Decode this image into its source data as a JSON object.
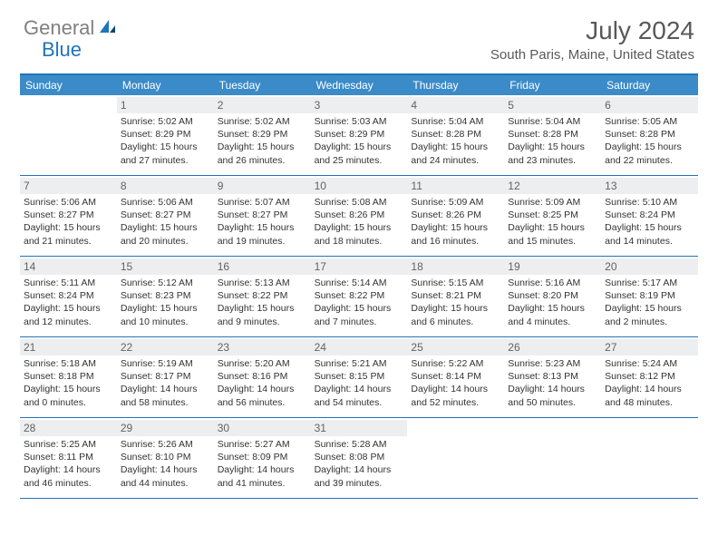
{
  "logo": {
    "part1": "General",
    "part2": "Blue"
  },
  "title": "July 2024",
  "location": "South Paris, Maine, United States",
  "day_names": [
    "Sunday",
    "Monday",
    "Tuesday",
    "Wednesday",
    "Thursday",
    "Friday",
    "Saturday"
  ],
  "colors": {
    "header_bg": "#3b8bc8",
    "border": "#2074bc",
    "daynum_bg": "#eceeef",
    "text_gray": "#595959"
  },
  "weeks": [
    [
      {
        "n": "",
        "lines": []
      },
      {
        "n": "1",
        "lines": [
          "Sunrise: 5:02 AM",
          "Sunset: 8:29 PM",
          "Daylight: 15 hours and 27 minutes."
        ]
      },
      {
        "n": "2",
        "lines": [
          "Sunrise: 5:02 AM",
          "Sunset: 8:29 PM",
          "Daylight: 15 hours and 26 minutes."
        ]
      },
      {
        "n": "3",
        "lines": [
          "Sunrise: 5:03 AM",
          "Sunset: 8:29 PM",
          "Daylight: 15 hours and 25 minutes."
        ]
      },
      {
        "n": "4",
        "lines": [
          "Sunrise: 5:04 AM",
          "Sunset: 8:28 PM",
          "Daylight: 15 hours and 24 minutes."
        ]
      },
      {
        "n": "5",
        "lines": [
          "Sunrise: 5:04 AM",
          "Sunset: 8:28 PM",
          "Daylight: 15 hours and 23 minutes."
        ]
      },
      {
        "n": "6",
        "lines": [
          "Sunrise: 5:05 AM",
          "Sunset: 8:28 PM",
          "Daylight: 15 hours and 22 minutes."
        ]
      }
    ],
    [
      {
        "n": "7",
        "lines": [
          "Sunrise: 5:06 AM",
          "Sunset: 8:27 PM",
          "Daylight: 15 hours and 21 minutes."
        ]
      },
      {
        "n": "8",
        "lines": [
          "Sunrise: 5:06 AM",
          "Sunset: 8:27 PM",
          "Daylight: 15 hours and 20 minutes."
        ]
      },
      {
        "n": "9",
        "lines": [
          "Sunrise: 5:07 AM",
          "Sunset: 8:27 PM",
          "Daylight: 15 hours and 19 minutes."
        ]
      },
      {
        "n": "10",
        "lines": [
          "Sunrise: 5:08 AM",
          "Sunset: 8:26 PM",
          "Daylight: 15 hours and 18 minutes."
        ]
      },
      {
        "n": "11",
        "lines": [
          "Sunrise: 5:09 AM",
          "Sunset: 8:26 PM",
          "Daylight: 15 hours and 16 minutes."
        ]
      },
      {
        "n": "12",
        "lines": [
          "Sunrise: 5:09 AM",
          "Sunset: 8:25 PM",
          "Daylight: 15 hours and 15 minutes."
        ]
      },
      {
        "n": "13",
        "lines": [
          "Sunrise: 5:10 AM",
          "Sunset: 8:24 PM",
          "Daylight: 15 hours and 14 minutes."
        ]
      }
    ],
    [
      {
        "n": "14",
        "lines": [
          "Sunrise: 5:11 AM",
          "Sunset: 8:24 PM",
          "Daylight: 15 hours and 12 minutes."
        ]
      },
      {
        "n": "15",
        "lines": [
          "Sunrise: 5:12 AM",
          "Sunset: 8:23 PM",
          "Daylight: 15 hours and 10 minutes."
        ]
      },
      {
        "n": "16",
        "lines": [
          "Sunrise: 5:13 AM",
          "Sunset: 8:22 PM",
          "Daylight: 15 hours and 9 minutes."
        ]
      },
      {
        "n": "17",
        "lines": [
          "Sunrise: 5:14 AM",
          "Sunset: 8:22 PM",
          "Daylight: 15 hours and 7 minutes."
        ]
      },
      {
        "n": "18",
        "lines": [
          "Sunrise: 5:15 AM",
          "Sunset: 8:21 PM",
          "Daylight: 15 hours and 6 minutes."
        ]
      },
      {
        "n": "19",
        "lines": [
          "Sunrise: 5:16 AM",
          "Sunset: 8:20 PM",
          "Daylight: 15 hours and 4 minutes."
        ]
      },
      {
        "n": "20",
        "lines": [
          "Sunrise: 5:17 AM",
          "Sunset: 8:19 PM",
          "Daylight: 15 hours and 2 minutes."
        ]
      }
    ],
    [
      {
        "n": "21",
        "lines": [
          "Sunrise: 5:18 AM",
          "Sunset: 8:18 PM",
          "Daylight: 15 hours and 0 minutes."
        ]
      },
      {
        "n": "22",
        "lines": [
          "Sunrise: 5:19 AM",
          "Sunset: 8:17 PM",
          "Daylight: 14 hours and 58 minutes."
        ]
      },
      {
        "n": "23",
        "lines": [
          "Sunrise: 5:20 AM",
          "Sunset: 8:16 PM",
          "Daylight: 14 hours and 56 minutes."
        ]
      },
      {
        "n": "24",
        "lines": [
          "Sunrise: 5:21 AM",
          "Sunset: 8:15 PM",
          "Daylight: 14 hours and 54 minutes."
        ]
      },
      {
        "n": "25",
        "lines": [
          "Sunrise: 5:22 AM",
          "Sunset: 8:14 PM",
          "Daylight: 14 hours and 52 minutes."
        ]
      },
      {
        "n": "26",
        "lines": [
          "Sunrise: 5:23 AM",
          "Sunset: 8:13 PM",
          "Daylight: 14 hours and 50 minutes."
        ]
      },
      {
        "n": "27",
        "lines": [
          "Sunrise: 5:24 AM",
          "Sunset: 8:12 PM",
          "Daylight: 14 hours and 48 minutes."
        ]
      }
    ],
    [
      {
        "n": "28",
        "lines": [
          "Sunrise: 5:25 AM",
          "Sunset: 8:11 PM",
          "Daylight: 14 hours and 46 minutes."
        ]
      },
      {
        "n": "29",
        "lines": [
          "Sunrise: 5:26 AM",
          "Sunset: 8:10 PM",
          "Daylight: 14 hours and 44 minutes."
        ]
      },
      {
        "n": "30",
        "lines": [
          "Sunrise: 5:27 AM",
          "Sunset: 8:09 PM",
          "Daylight: 14 hours and 41 minutes."
        ]
      },
      {
        "n": "31",
        "lines": [
          "Sunrise: 5:28 AM",
          "Sunset: 8:08 PM",
          "Daylight: 14 hours and 39 minutes."
        ]
      },
      {
        "n": "",
        "lines": []
      },
      {
        "n": "",
        "lines": []
      },
      {
        "n": "",
        "lines": []
      }
    ]
  ]
}
